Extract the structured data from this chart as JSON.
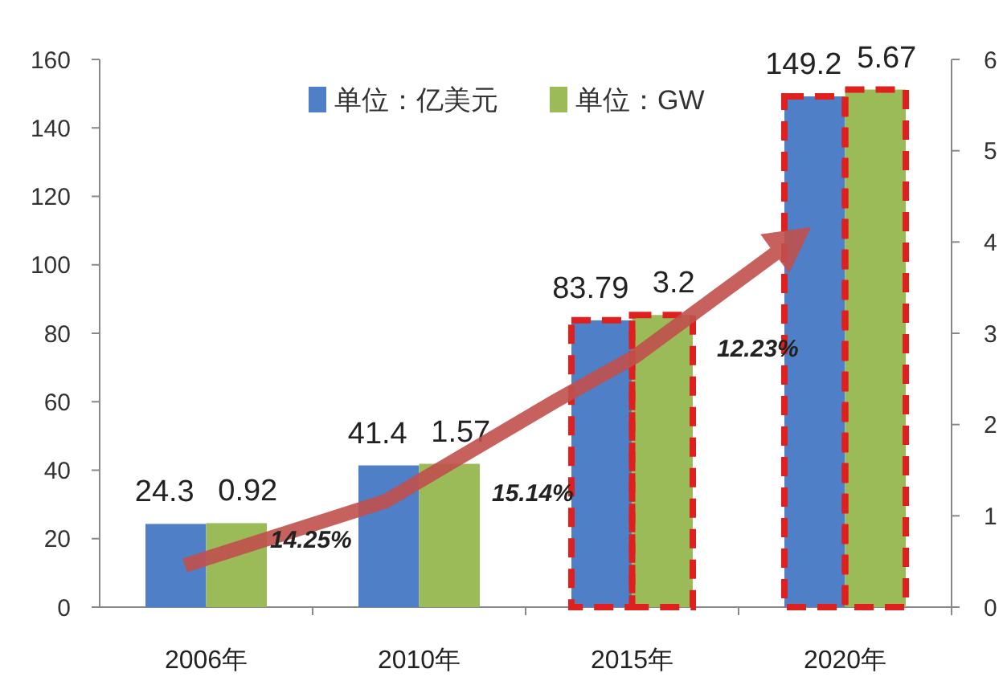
{
  "chart_data": {
    "type": "bar",
    "categories": [
      "2006年",
      "2010年",
      "2015年",
      "2020年"
    ],
    "series": [
      {
        "name": "单位：亿美元",
        "color": "#4f7fc6",
        "values": [
          24.3,
          41.4,
          83.79,
          149.2
        ]
      },
      {
        "name": "单位：GW",
        "color": "#9bbb59",
        "values": [
          0.92,
          1.57,
          3.2,
          5.67
        ],
        "axis": "y2"
      }
    ],
    "ylim": [
      0,
      160
    ],
    "yticks": [
      0,
      20,
      40,
      60,
      80,
      100,
      120,
      140,
      160
    ],
    "y2lim": [
      0,
      6
    ],
    "y2ticks": [
      0,
      1,
      2,
      3,
      4,
      5,
      6
    ],
    "data_labels": true,
    "legend": "top",
    "grid": false,
    "annotations": [
      "14.25%",
      "15.14%",
      "12.23%"
    ]
  }
}
